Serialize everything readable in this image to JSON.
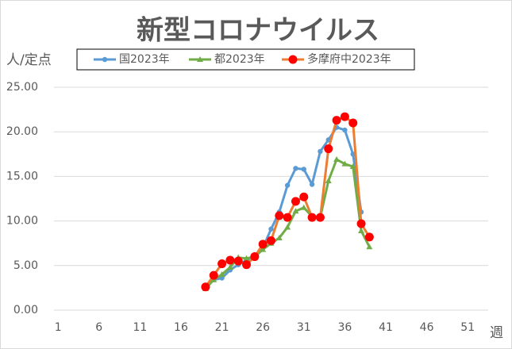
{
  "chart_data": {
    "type": "line",
    "title": "新型コロナウイルス",
    "y_label": "人/定点",
    "x_label": "週",
    "x": [
      19,
      20,
      21,
      22,
      23,
      24,
      25,
      26,
      27,
      28,
      29,
      30,
      31,
      32,
      33,
      34,
      35,
      36,
      37,
      38,
      39
    ],
    "xlim": [
      0.5,
      53.5
    ],
    "xticks": [
      1,
      6,
      11,
      16,
      21,
      26,
      31,
      36,
      41,
      46,
      51
    ],
    "ylim": [
      0,
      25
    ],
    "yticks": [
      {
        "value": 0,
        "label": "0.00"
      },
      {
        "value": 5,
        "label": "5.00"
      },
      {
        "value": 10,
        "label": "10.00"
      },
      {
        "value": 15,
        "label": "15.00"
      },
      {
        "value": 20,
        "label": "20.00"
      },
      {
        "value": 25,
        "label": "25.00"
      }
    ],
    "grid": true,
    "legend": "top",
    "series": [
      {
        "name": "国2023年",
        "color": "#5b9bd5",
        "marker_color": "#5b9bd5",
        "marker": "circle",
        "values": [
          2.6,
          3.4,
          3.6,
          4.5,
          5.1,
          5.6,
          6.1,
          7.0,
          9.1,
          11.0,
          14.0,
          15.9,
          15.8,
          14.1,
          17.8,
          19.1,
          20.5,
          20.2,
          17.5,
          11.0,
          null
        ]
      },
      {
        "name": "都2023年",
        "color": "#70ad47",
        "marker_color": "#70ad47",
        "marker": "triangle",
        "values": [
          2.4,
          3.4,
          4.0,
          4.8,
          5.9,
          5.8,
          6.0,
          6.8,
          7.5,
          8.1,
          9.3,
          11.1,
          11.5,
          10.5,
          10.4,
          14.5,
          16.9,
          16.4,
          16.1,
          8.9,
          7.1
        ]
      },
      {
        "name": "多摩府中2023年",
        "color": "#ed7d31",
        "marker_color": "#ff0000",
        "marker": "circle-large",
        "values": [
          2.6,
          3.9,
          5.2,
          5.6,
          5.5,
          5.1,
          6.0,
          7.4,
          7.8,
          10.6,
          10.4,
          12.2,
          12.7,
          10.4,
          10.4,
          18.1,
          21.3,
          21.7,
          21.0,
          9.7,
          8.2
        ]
      }
    ]
  }
}
